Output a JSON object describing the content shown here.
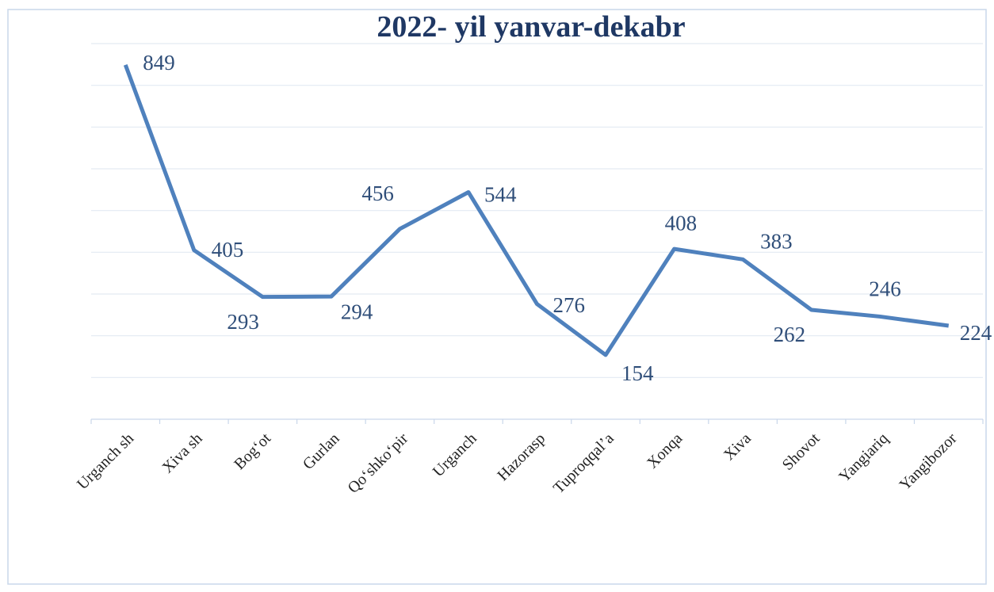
{
  "chart_data": {
    "type": "line",
    "title": "2022- yil yanvar-dekabr",
    "categories": [
      "Urganch sh",
      "Xiva sh",
      "Bog‘ot",
      "Gurlan",
      "Qo‘shko‘pir",
      "Urganch",
      "Hazorasp",
      "Tuproqqal’a",
      "Xonqa",
      "Xiva",
      "Shovot",
      "Yangiariq",
      "Yangibozor"
    ],
    "series": [
      {
        "name": "2022- yil yanvar-dekabr",
        "color": "#4f81bd",
        "values": [
          849,
          405,
          293,
          294,
          456,
          544,
          276,
          154,
          408,
          383,
          262,
          246,
          224
        ]
      }
    ],
    "ylim": [
      0,
      900
    ],
    "yticks": [
      0,
      100,
      200,
      300,
      400,
      500,
      600,
      700,
      800,
      900
    ],
    "grid": true
  }
}
